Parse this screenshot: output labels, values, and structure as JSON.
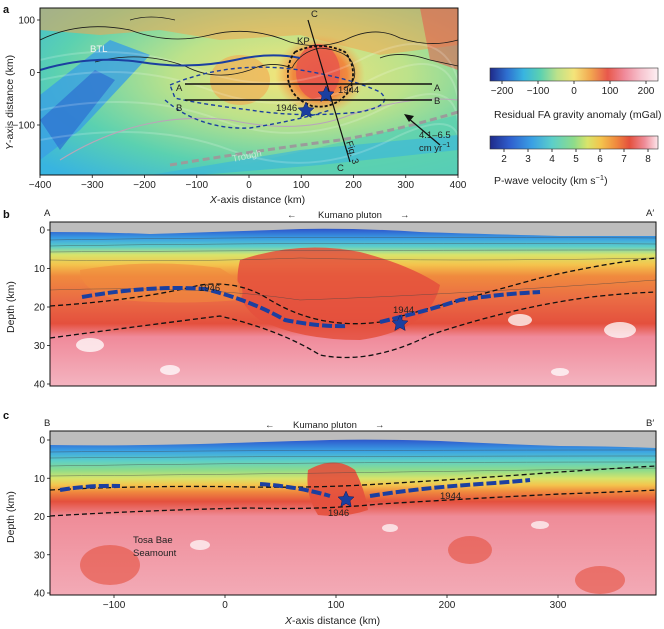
{
  "panel_a": {
    "label": "a",
    "ylabel_main": "Y",
    "ylabel_rest": "-axis distance (km)",
    "xlabel_main": "X",
    "xlabel_rest": "-axis distance (km)",
    "xticks": [
      "−400",
      "−300",
      "−200",
      "−100",
      "0",
      "100",
      "200",
      "300",
      "400"
    ],
    "yticks": [
      "100",
      "0",
      "−100"
    ],
    "map_labels": {
      "bt": "BTL",
      "kp": "KP",
      "c_top": "C",
      "c_bottom": "C",
      "a_left": "A",
      "a_right": "A",
      "b_left": "B",
      "b_right": "B",
      "quake_1944": "1944",
      "quake_1946": "1946",
      "fig3": "Fig. 3",
      "trough": "Trough",
      "rate_1": "4.1–6.5",
      "rate_2": "cm yr",
      "rate_exp": "−1"
    }
  },
  "colorbar_gravity": {
    "ticks": [
      "−200",
      "−100",
      "0",
      "100",
      "200"
    ],
    "label": "Residual FA gravity anomaly (mGal)"
  },
  "colorbar_velocity": {
    "ticks": [
      "2",
      "3",
      "4",
      "5",
      "6",
      "7",
      "8"
    ],
    "label_main": "P-wave velocity (km s",
    "label_exp": "−1",
    "label_end": ")"
  },
  "panel_b": {
    "label": "b",
    "left_end": "A",
    "right_end": "A′",
    "pluton": "Kumano pluton",
    "arrow_left": "←",
    "arrow_right": "→",
    "ylabel": "Depth (km)",
    "yticks": [
      "0",
      "10",
      "20",
      "30",
      "40"
    ],
    "quake_1946": "1946",
    "quake_1944": "1944"
  },
  "panel_c": {
    "label": "c",
    "left_end": "B",
    "right_end": "B′",
    "pluton": "Kumano pluton",
    "arrow_left": "←",
    "arrow_right": "→",
    "ylabel": "Depth (km)",
    "yticks": [
      "0",
      "10",
      "20",
      "30",
      "40"
    ],
    "xticks": [
      "−100",
      "0",
      "100",
      "200",
      "300"
    ],
    "xlabel_main": "X",
    "xlabel_rest": "-axis distance (km)",
    "quake_1946": "1946",
    "quake_1944": "1944",
    "seamount_1": "Tosa Bae",
    "seamount_2": "Seamount"
  },
  "colors": {
    "gravity_scale": [
      "#1f2a8a",
      "#2e6fd0",
      "#38b4e0",
      "#5bd1b0",
      "#bde28a",
      "#f4e47a",
      "#f2a650",
      "#e8584b",
      "#f08a9a",
      "#f7c4cf",
      "#fbe4ea"
    ],
    "velocity_scale": [
      "#1f2a8a",
      "#2f5fcf",
      "#3aa0e4",
      "#5ccfc9",
      "#8edc8a",
      "#d9e46a",
      "#f4c44d",
      "#f08a3e",
      "#e4503d",
      "#ef8c98",
      "#fde7ec"
    ],
    "slab_line": "#1b3fa0"
  }
}
